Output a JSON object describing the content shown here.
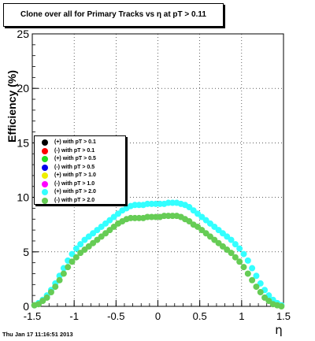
{
  "title": "Clone  over all for Primary Tracks vs η at pT > 0.11",
  "timestamp": "Thu Jan 17 11:16:51 2013",
  "colors": {
    "black": "#000000",
    "red": "#ff0000",
    "green": "#22dd22",
    "blue": "#0000ee",
    "yellow": "#eeee00",
    "magenta": "#ff00ff",
    "cyan": "#33ffff",
    "lightgreen": "#66cc55"
  },
  "chart_data": {
    "type": "scatter",
    "xlabel": "η",
    "ylabel": "Efficiency (%)",
    "xlim": [
      -1.5,
      1.5
    ],
    "ylim": [
      0,
      25
    ],
    "xticks": [
      "-1.5",
      "-1",
      "-0.5",
      "0",
      "0.5",
      "1",
      "1.5"
    ],
    "yticks": [
      "0",
      "5",
      "10",
      "15",
      "20",
      "25"
    ],
    "grid": true,
    "legend_position": "center-left",
    "legend": [
      {
        "label": "(+) with pT > 0.1",
        "color": "#000000"
      },
      {
        "label": "(-) with pT > 0.1",
        "color": "#ff0000"
      },
      {
        "label": "(+) with pT > 0.5",
        "color": "#22dd22"
      },
      {
        "label": "(-) with pT > 0.5",
        "color": "#0000ee"
      },
      {
        "label": "(+) with pT > 1.0",
        "color": "#eeee00"
      },
      {
        "label": "(-) with pT > 1.0",
        "color": "#ff00ff"
      },
      {
        "label": "(+) with pT > 2.0",
        "color": "#33ffff"
      },
      {
        "label": "(-) with pT > 2.0",
        "color": "#66cc55"
      }
    ],
    "series": [
      {
        "name": "(+) with pT > 2.0",
        "color": "#33ffff",
        "x": [
          -1.475,
          -1.425,
          -1.375,
          -1.325,
          -1.275,
          -1.225,
          -1.175,
          -1.125,
          -1.075,
          -1.025,
          -0.975,
          -0.925,
          -0.875,
          -0.825,
          -0.775,
          -0.725,
          -0.675,
          -0.625,
          -0.575,
          -0.525,
          -0.475,
          -0.425,
          -0.375,
          -0.325,
          -0.275,
          -0.225,
          -0.175,
          -0.125,
          -0.075,
          -0.025,
          0.025,
          0.075,
          0.125,
          0.175,
          0.225,
          0.275,
          0.325,
          0.375,
          0.425,
          0.475,
          0.525,
          0.575,
          0.625,
          0.675,
          0.725,
          0.775,
          0.825,
          0.875,
          0.925,
          0.975,
          1.025,
          1.075,
          1.125,
          1.175,
          1.225,
          1.275,
          1.325,
          1.375,
          1.425,
          1.475
        ],
        "y": [
          0.1,
          0.3,
          0.6,
          1.0,
          1.5,
          2.1,
          2.8,
          3.5,
          4.2,
          4.8,
          5.3,
          5.7,
          6.1,
          6.4,
          6.7,
          7.0,
          7.3,
          7.6,
          7.9,
          8.2,
          8.5,
          8.8,
          9.0,
          9.2,
          9.3,
          9.3,
          9.3,
          9.4,
          9.4,
          9.4,
          9.4,
          9.4,
          9.5,
          9.5,
          9.5,
          9.4,
          9.3,
          9.1,
          8.8,
          8.5,
          8.2,
          7.9,
          7.6,
          7.3,
          7.0,
          6.7,
          6.4,
          6.1,
          5.7,
          5.3,
          4.8,
          4.2,
          3.5,
          2.8,
          2.1,
          1.5,
          1.0,
          0.6,
          0.3,
          0.1
        ]
      },
      {
        "name": "(-) with pT > 2.0",
        "color": "#66cc55",
        "x": [
          -1.475,
          -1.425,
          -1.375,
          -1.325,
          -1.275,
          -1.225,
          -1.175,
          -1.125,
          -1.075,
          -1.025,
          -0.975,
          -0.925,
          -0.875,
          -0.825,
          -0.775,
          -0.725,
          -0.675,
          -0.625,
          -0.575,
          -0.525,
          -0.475,
          -0.425,
          -0.375,
          -0.325,
          -0.275,
          -0.225,
          -0.175,
          -0.125,
          -0.075,
          -0.025,
          0.025,
          0.075,
          0.125,
          0.175,
          0.225,
          0.275,
          0.325,
          0.375,
          0.425,
          0.475,
          0.525,
          0.575,
          0.625,
          0.675,
          0.725,
          0.775,
          0.825,
          0.875,
          0.925,
          0.975,
          1.025,
          1.075,
          1.125,
          1.175,
          1.225,
          1.275,
          1.325,
          1.375,
          1.425,
          1.475
        ],
        "y": [
          0.1,
          0.2,
          0.5,
          0.8,
          1.3,
          1.8,
          2.4,
          3.0,
          3.6,
          4.1,
          4.5,
          4.9,
          5.2,
          5.5,
          5.8,
          6.1,
          6.4,
          6.7,
          7.0,
          7.3,
          7.6,
          7.8,
          8.0,
          8.1,
          8.1,
          8.1,
          8.1,
          8.2,
          8.2,
          8.2,
          8.2,
          8.3,
          8.3,
          8.3,
          8.3,
          8.2,
          8.0,
          7.8,
          7.5,
          7.3,
          7.0,
          6.7,
          6.4,
          6.1,
          5.8,
          5.5,
          5.2,
          4.9,
          4.5,
          4.1,
          3.6,
          3.0,
          2.4,
          1.8,
          1.3,
          0.8,
          0.5,
          0.2,
          0.1,
          0.0
        ]
      }
    ]
  }
}
